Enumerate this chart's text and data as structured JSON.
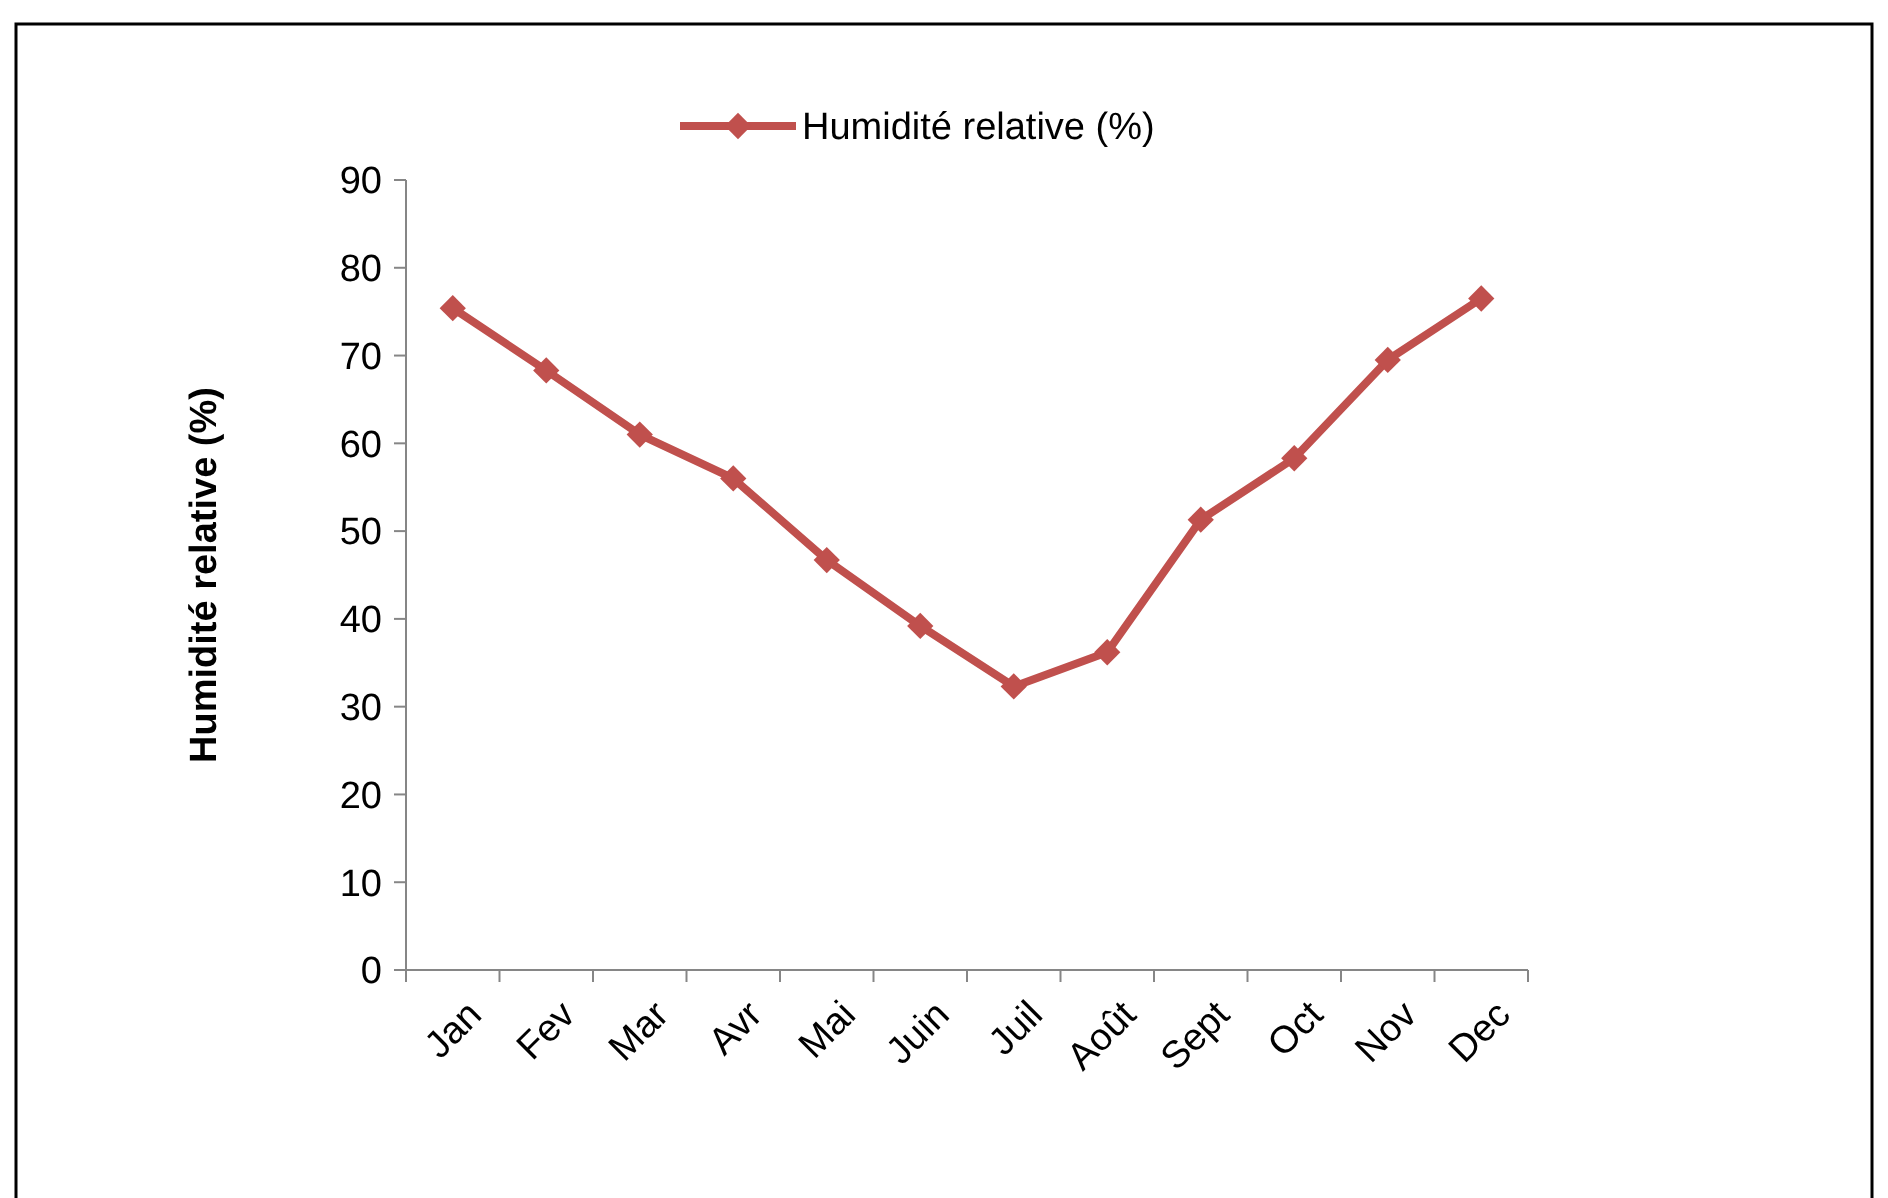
{
  "chart_data": {
    "type": "line",
    "ylabel": "Humidité relative (%)",
    "categories": [
      "Jan",
      "Fev",
      "Mar",
      "Avr",
      "Mai",
      "Juin",
      "Juil",
      "Août",
      "Sept",
      "Oct",
      "Nov",
      "Dec"
    ],
    "series": [
      {
        "name": "Humidité relative (%)",
        "color": "#c0504d",
        "values": [
          75.4,
          68.3,
          61.0,
          56.0,
          46.7,
          39.2,
          32.3,
          36.2,
          51.3,
          58.3,
          69.5,
          76.5
        ]
      }
    ],
    "ylim": [
      0,
      90
    ],
    "yticks": [
      0,
      10,
      20,
      30,
      40,
      50,
      60,
      70,
      80,
      90
    ],
    "grid": false,
    "legend": "top",
    "marker": "diamond",
    "line_style": "solid"
  }
}
